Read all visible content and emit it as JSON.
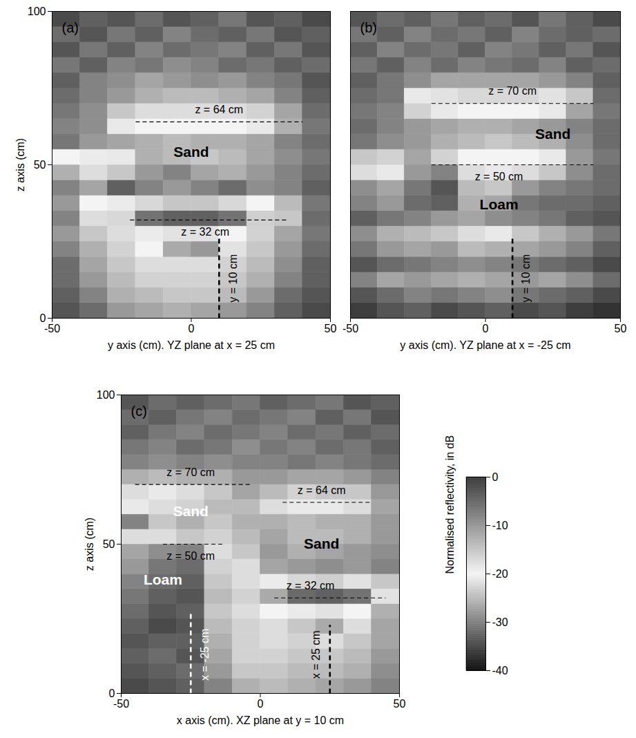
{
  "chart_data": [
    {
      "type": "heatmap",
      "panel_label": "(a)",
      "x_label": "y axis (cm). YZ plane at x = 25 cm",
      "y_label": "z axis (cm)",
      "xlim": [
        -50,
        50
      ],
      "ylim": [
        0,
        100
      ],
      "xticks": [
        -50,
        0,
        50
      ],
      "yticks": [
        0,
        50,
        100
      ],
      "cells": {
        "x_edges": [
          -50,
          -40,
          -30,
          -20,
          -10,
          0,
          10,
          20,
          30,
          40,
          50
        ],
        "y_edges": [
          0,
          5,
          10,
          15,
          20,
          25,
          30,
          35,
          40,
          45,
          50,
          55,
          60,
          65,
          70,
          75,
          80,
          85,
          90,
          95,
          100
        ],
        "values": [
          [
            -34,
            -32,
            -28,
            -27,
            -26,
            -27,
            -28,
            -30,
            -33,
            -35
          ],
          [
            -33,
            -30,
            -26,
            -25,
            -24,
            -24,
            -25,
            -28,
            -32,
            -34
          ],
          [
            -32,
            -28,
            -25,
            -23,
            -23,
            -23,
            -24,
            -26,
            -30,
            -33
          ],
          [
            -32,
            -27,
            -24,
            -22,
            -22,
            -22,
            -23,
            -25,
            -29,
            -33
          ],
          [
            -30,
            -26,
            -23,
            -20,
            -12,
            -10,
            -18,
            -24,
            -28,
            -32
          ],
          [
            -28,
            -24,
            -22,
            -19,
            -18,
            -18,
            -20,
            -23,
            -27,
            -31
          ],
          [
            -30,
            -22,
            -17,
            -6,
            -4,
            -4,
            -6,
            -16,
            -24,
            -32
          ],
          [
            -28,
            -20,
            -19,
            -17,
            -15,
            -15,
            -17,
            -20,
            -25,
            -31
          ],
          [
            -30,
            -27,
            -33,
            -30,
            -28,
            -30,
            -32,
            -29,
            -30,
            -33
          ],
          [
            -26,
            -22,
            -24,
            -28,
            -30,
            -27,
            -26,
            -28,
            -30,
            -32
          ],
          [
            -20,
            -19,
            -21,
            -26,
            -25,
            -24,
            -25,
            -27,
            -29,
            -31
          ],
          [
            -31,
            -28,
            -27,
            -26,
            -25,
            -26,
            -26,
            -27,
            -30,
            -32
          ],
          [
            -30,
            -29,
            -21,
            -20,
            -20,
            -20,
            -20,
            -21,
            -26,
            -31
          ],
          [
            -31,
            -29,
            -24,
            -22,
            -22,
            -22,
            -22,
            -23,
            -27,
            -32
          ],
          [
            -32,
            -30,
            -28,
            -26,
            -25,
            -25,
            -26,
            -27,
            -30,
            -33
          ],
          [
            -33,
            -30,
            -29,
            -27,
            -28,
            -29,
            -28,
            -30,
            -31,
            -34
          ],
          [
            -31,
            -33,
            -30,
            -31,
            -29,
            -30,
            -32,
            -31,
            -33,
            -32
          ],
          [
            -34,
            -31,
            -33,
            -30,
            -32,
            -31,
            -30,
            -33,
            -31,
            -34
          ],
          [
            -32,
            -34,
            -31,
            -33,
            -30,
            -32,
            -33,
            -31,
            -34,
            -33
          ],
          [
            -35,
            -33,
            -34,
            -32,
            -34,
            -33,
            -31,
            -34,
            -33,
            -35
          ]
        ]
      },
      "lines": [
        {
          "x": [
            -20,
            40
          ],
          "y": [
            64,
            64
          ],
          "label": "z = 64 cm",
          "label_at": [
            10,
            68
          ],
          "line_style": "dashed"
        },
        {
          "x": [
            -22,
            35
          ],
          "y": [
            32,
            32
          ],
          "label": "z = 32 cm",
          "label_at": [
            5,
            28
          ],
          "line_style": "dashed"
        },
        {
          "x": [
            10,
            10
          ],
          "y": [
            0,
            26
          ],
          "label": "y = 10 cm",
          "label_at": [
            15,
            13
          ],
          "line_style": "dashed"
        }
      ],
      "texts": [
        {
          "text": "Sand",
          "x": 0,
          "y": 54
        }
      ]
    },
    {
      "type": "heatmap",
      "panel_label": "(b)",
      "x_label": "y axis (cm). YZ plane at x = -25 cm",
      "xlim": [
        -50,
        50
      ],
      "ylim": [
        0,
        100
      ],
      "xticks": [
        -50,
        0,
        50
      ],
      "yticks": [
        0,
        50,
        100
      ],
      "tick_labels": "x",
      "cells": {
        "x_edges": [
          -50,
          -40,
          -30,
          -20,
          -10,
          0,
          10,
          20,
          30,
          40,
          50
        ],
        "y_edges": [
          0,
          5,
          10,
          15,
          20,
          25,
          30,
          35,
          40,
          45,
          50,
          55,
          60,
          65,
          70,
          75,
          80,
          85,
          90,
          95,
          100
        ],
        "values": [
          [
            -36,
            -34,
            -33,
            -35,
            -34,
            -33,
            -35,
            -34,
            -36,
            -37
          ],
          [
            -34,
            -32,
            -30,
            -31,
            -30,
            -29,
            -31,
            -32,
            -33,
            -35
          ],
          [
            -30,
            -27,
            -28,
            -27,
            -26,
            -27,
            -28,
            -27,
            -29,
            -32
          ],
          [
            -34,
            -32,
            -31,
            -30,
            -29,
            -30,
            -31,
            -32,
            -33,
            -35
          ],
          [
            -31,
            -28,
            -27,
            -28,
            -25,
            -26,
            -27,
            -28,
            -30,
            -33
          ],
          [
            -29,
            -26,
            -25,
            -24,
            -22,
            -21,
            -24,
            -26,
            -28,
            -31
          ],
          [
            -33,
            -31,
            -30,
            -28,
            -27,
            -29,
            -30,
            -31,
            -33,
            -34
          ],
          [
            -30,
            -28,
            -32,
            -33,
            -26,
            -27,
            -31,
            -32,
            -32,
            -33
          ],
          [
            -29,
            -27,
            -31,
            -34,
            -25,
            -24,
            -28,
            -30,
            -31,
            -32
          ],
          [
            -22,
            -21,
            -28,
            -30,
            -22,
            -21,
            -22,
            -24,
            -29,
            -32
          ],
          [
            -24,
            -23,
            -27,
            -23,
            -20,
            -20,
            -20,
            -21,
            -28,
            -31
          ],
          [
            -31,
            -29,
            -28,
            -26,
            -25,
            -24,
            -25,
            -26,
            -29,
            -32
          ],
          [
            -32,
            -30,
            -28,
            -27,
            -26,
            -26,
            -27,
            -28,
            -30,
            -32
          ],
          [
            -31,
            -30,
            -23,
            -21,
            -20,
            -20,
            -20,
            -21,
            -27,
            -31
          ],
          [
            -32,
            -31,
            -21,
            -18,
            -17,
            -17,
            -17,
            -18,
            -24,
            -32
          ],
          [
            -33,
            -31,
            -29,
            -27,
            -27,
            -27,
            -27,
            -28,
            -30,
            -33
          ],
          [
            -31,
            -33,
            -30,
            -32,
            -30,
            -31,
            -32,
            -30,
            -33,
            -32
          ],
          [
            -33,
            -30,
            -32,
            -31,
            -33,
            -30,
            -31,
            -33,
            -31,
            -34
          ],
          [
            -31,
            -33,
            -30,
            -32,
            -31,
            -33,
            -30,
            -32,
            -33,
            -32
          ],
          [
            -34,
            -32,
            -33,
            -31,
            -33,
            -32,
            -34,
            -31,
            -33,
            -35
          ]
        ]
      },
      "lines": [
        {
          "x": [
            -20,
            40
          ],
          "y": [
            70,
            70
          ],
          "label": "z = 70 cm",
          "label_at": [
            10,
            74
          ],
          "line_style": "dashed"
        },
        {
          "x": [
            -20,
            40
          ],
          "y": [
            50,
            50
          ],
          "label": "z = 50 cm",
          "label_at": [
            5,
            46
          ],
          "line_style": "dashed"
        },
        {
          "x": [
            10,
            10
          ],
          "y": [
            0,
            26
          ],
          "label": "y = 10 cm",
          "label_at": [
            15,
            13
          ],
          "line_style": "dashed"
        }
      ],
      "texts": [
        {
          "text": "Sand",
          "x": 25,
          "y": 60
        },
        {
          "text": "Loam",
          "x": 5,
          "y": 37
        }
      ]
    },
    {
      "type": "heatmap",
      "panel_label": "(c)",
      "x_label": "x axis (cm). XZ plane at y = 10 cm",
      "y_label": "z axis (cm)",
      "xlim": [
        -50,
        50
      ],
      "ylim": [
        0,
        100
      ],
      "xticks": [
        -50,
        0,
        50
      ],
      "yticks": [
        0,
        50,
        100
      ],
      "cells": {
        "x_edges": [
          -50,
          -40,
          -30,
          -20,
          -10,
          0,
          10,
          20,
          30,
          40,
          50
        ],
        "y_edges": [
          0,
          5,
          10,
          15,
          20,
          25,
          30,
          35,
          40,
          45,
          50,
          55,
          60,
          65,
          70,
          75,
          80,
          85,
          90,
          95,
          100
        ],
        "values": [
          [
            -35,
            -34,
            -33,
            -30,
            -26,
            -25,
            -26,
            -27,
            -28,
            -30
          ],
          [
            -34,
            -33,
            -32,
            -28,
            -24,
            -24,
            -25,
            -25,
            -26,
            -29
          ],
          [
            -33,
            -32,
            -34,
            -27,
            -23,
            -23,
            -24,
            -24,
            -25,
            -28
          ],
          [
            -34,
            -33,
            -33,
            -26,
            -23,
            -22,
            -23,
            -22,
            -24,
            -27
          ],
          [
            -33,
            -35,
            -34,
            -25,
            -23,
            -22,
            -24,
            -12,
            -22,
            -27
          ],
          [
            -32,
            -34,
            -33,
            -24,
            -22,
            -20,
            -19,
            -18,
            -20,
            -26
          ],
          [
            -31,
            -33,
            -34,
            -25,
            -23,
            -12,
            -5,
            -4,
            -6,
            -18
          ],
          [
            -30,
            -32,
            -33,
            -24,
            -22,
            -19,
            -17,
            -16,
            -18,
            -24
          ],
          [
            -28,
            -31,
            -32,
            -23,
            -22,
            -27,
            -28,
            -29,
            -28,
            -30
          ],
          [
            -27,
            -29,
            -30,
            -22,
            -24,
            -28,
            -26,
            -27,
            -28,
            -29
          ],
          [
            -22,
            -22,
            -24,
            -23,
            -25,
            -27,
            -25,
            -25,
            -26,
            -28
          ],
          [
            -30,
            -24,
            -26,
            -24,
            -26,
            -26,
            -25,
            -26,
            -26,
            -28
          ],
          [
            -21,
            -22,
            -23,
            -25,
            -25,
            -22,
            -21,
            -21,
            -22,
            -27
          ],
          [
            -22,
            -21,
            -22,
            -24,
            -27,
            -25,
            -23,
            -24,
            -24,
            -28
          ],
          [
            -26,
            -25,
            -26,
            -26,
            -28,
            -28,
            -27,
            -27,
            -28,
            -30
          ],
          [
            -30,
            -29,
            -30,
            -29,
            -30,
            -30,
            -31,
            -30,
            -31,
            -32
          ],
          [
            -31,
            -30,
            -32,
            -31,
            -29,
            -31,
            -30,
            -32,
            -31,
            -33
          ],
          [
            -33,
            -31,
            -30,
            -32,
            -31,
            -30,
            -32,
            -31,
            -33,
            -32
          ],
          [
            -32,
            -33,
            -31,
            -30,
            -32,
            -31,
            -30,
            -33,
            -31,
            -34
          ],
          [
            -34,
            -32,
            -33,
            -32,
            -31,
            -33,
            -32,
            -31,
            -34,
            -33
          ]
        ]
      },
      "lines": [
        {
          "x": [
            -45,
            -3
          ],
          "y": [
            70,
            70
          ],
          "label": "z = 70 cm",
          "label_at": [
            -25,
            74
          ],
          "line_style": "dashed"
        },
        {
          "x": [
            -35,
            -13
          ],
          "y": [
            50,
            50
          ],
          "label": "z = 50 cm",
          "label_at": [
            -25,
            46
          ],
          "line_style": "dashed"
        },
        {
          "x": [
            8,
            40
          ],
          "y": [
            64,
            64
          ],
          "label": "z = 64 cm",
          "label_at": [
            22,
            68
          ],
          "line_style": "dashed"
        },
        {
          "x": [
            5,
            45
          ],
          "y": [
            32,
            32
          ],
          "label": "z = 32 cm",
          "label_at": [
            18,
            36
          ],
          "line_style": "dashed"
        },
        {
          "x": [
            -25,
            -25
          ],
          "y": [
            0,
            27
          ],
          "label": "x = -25 cm",
          "label_at": [
            -20,
            13
          ],
          "line_style": "dashed",
          "color": "white"
        },
        {
          "x": [
            25,
            25
          ],
          "y": [
            0,
            23
          ],
          "label": "x = 25 cm",
          "label_at": [
            20,
            13
          ],
          "line_style": "dashed"
        }
      ],
      "texts": [
        {
          "text": "Sand",
          "x": -25,
          "y": 61,
          "color": "white"
        },
        {
          "text": "Loam",
          "x": -35,
          "y": 38,
          "color": "white"
        },
        {
          "text": "Sand",
          "x": 22,
          "y": 50
        }
      ]
    },
    {
      "type": "colorbar",
      "label": "Normalised reflectivity, in dB",
      "range": [
        -40,
        0
      ],
      "ticks": [
        0,
        -10,
        -20,
        -30,
        -40
      ]
    }
  ]
}
